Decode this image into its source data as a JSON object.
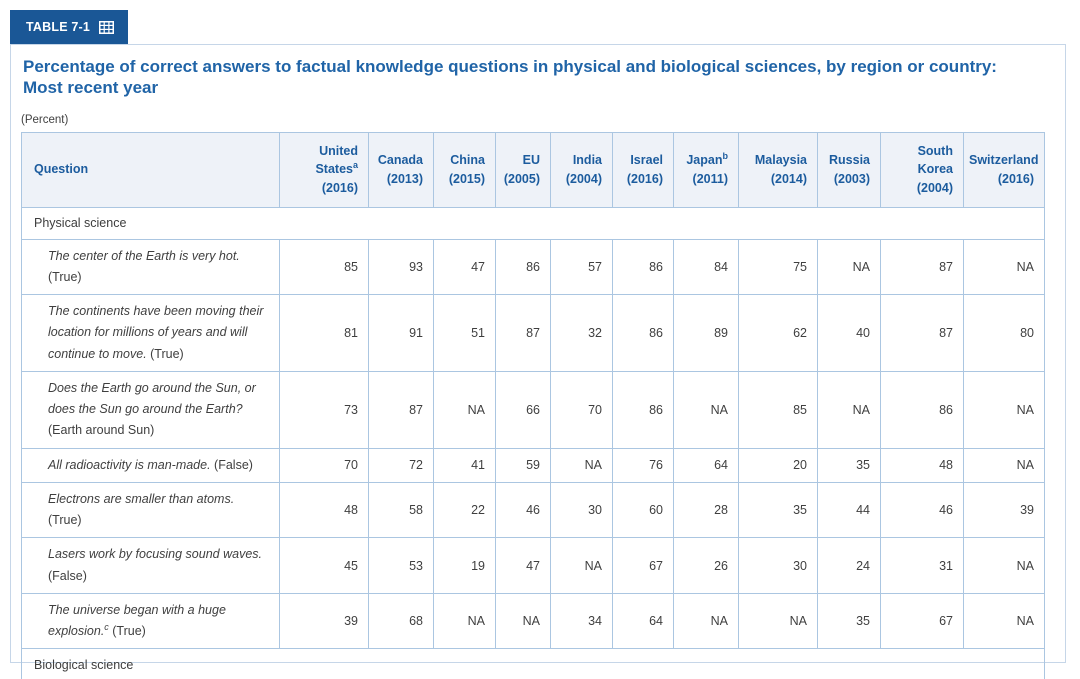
{
  "tab": {
    "label": "TABLE 7-1",
    "color": "#1a5796",
    "icon": "table-grid-icon"
  },
  "title": "Percentage of correct answers to factual knowledge questions in physical and biological sciences, by region or country: Most recent year",
  "unit_note": "(Percent)",
  "colors": {
    "accent_blue": "#1a5796",
    "title_blue": "#2064a7",
    "header_text_blue": "#1c5c9e",
    "table_border": "#abc6e1",
    "header_bg": "#eef2f8",
    "body_text": "#3f3f3f"
  },
  "table": {
    "question_header": "Question",
    "columns": [
      {
        "label": "United States",
        "sup": "a",
        "year": "(2016)"
      },
      {
        "label": "Canada",
        "sup": "",
        "year": "(2013)"
      },
      {
        "label": "China",
        "sup": "",
        "year": "(2015)"
      },
      {
        "label": "EU",
        "sup": "",
        "year": "(2005)"
      },
      {
        "label": "India",
        "sup": "",
        "year": "(2004)"
      },
      {
        "label": "Israel",
        "sup": "",
        "year": "(2016)"
      },
      {
        "label": "Japan",
        "sup": "b",
        "year": "(2011)"
      },
      {
        "label": "Malaysia",
        "sup": "",
        "year": "(2014)"
      },
      {
        "label": "Russia",
        "sup": "",
        "year": "(2003)"
      },
      {
        "label": "South Korea",
        "sup": "",
        "year": "(2004)"
      },
      {
        "label": "Switzerland",
        "sup": "",
        "year": "(2016)"
      }
    ],
    "sections": [
      {
        "label": "Physical science",
        "rows": [
          {
            "q": "The center of the Earth is very hot.",
            "sup": "",
            "a": " (True)",
            "values": [
              "85",
              "93",
              "47",
              "86",
              "57",
              "86",
              "84",
              "75",
              "NA",
              "87",
              "NA"
            ]
          },
          {
            "q": "The continents have been moving their location for millions of years and will continue to move.",
            "sup": "",
            "a": " (True)",
            "values": [
              "81",
              "91",
              "51",
              "87",
              "32",
              "86",
              "89",
              "62",
              "40",
              "87",
              "80"
            ]
          },
          {
            "q": "Does the Earth go around the Sun, or does the Sun go around the Earth?",
            "sup": "",
            "a": "(Earth around Sun)",
            "values": [
              "73",
              "87",
              "NA",
              "66",
              "70",
              "86",
              "NA",
              "85",
              "NA",
              "86",
              "NA"
            ]
          },
          {
            "q": "All radioactivity is man-made.",
            "sup": "",
            "a": " (False)",
            "values": [
              "70",
              "72",
              "41",
              "59",
              "NA",
              "76",
              "64",
              "20",
              "35",
              "48",
              "NA"
            ]
          },
          {
            "q": "Electrons are smaller than atoms.",
            "sup": "",
            "a": " (True)",
            "values": [
              "48",
              "58",
              "22",
              "46",
              "30",
              "60",
              "28",
              "35",
              "44",
              "46",
              "39"
            ]
          },
          {
            "q": "Lasers work by focusing sound waves.",
            "sup": "",
            "a": " (False)",
            "values": [
              "45",
              "53",
              "19",
              "47",
              "NA",
              "67",
              "26",
              "30",
              "24",
              "31",
              "NA"
            ]
          },
          {
            "q": "The universe began with a huge explosion.",
            "sup": "c",
            "a": " (True)",
            "values": [
              "39",
              "68",
              "NA",
              "NA",
              "34",
              "64",
              "NA",
              "NA",
              "35",
              "67",
              "NA"
            ]
          }
        ]
      },
      {
        "label": "Biological science",
        "rows": []
      }
    ]
  }
}
